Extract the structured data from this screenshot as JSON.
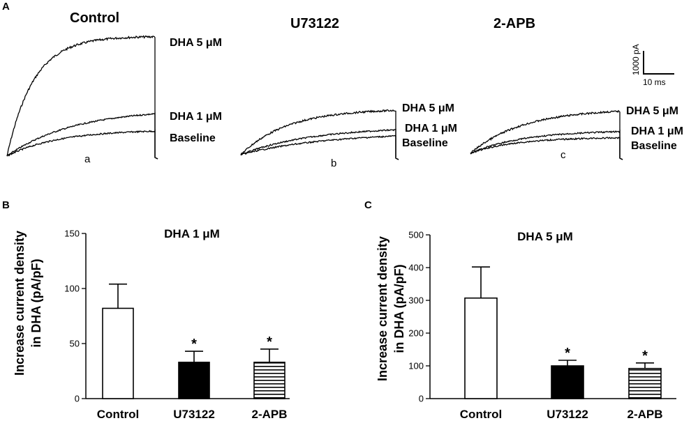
{
  "panel_A": {
    "letter": "A",
    "conditions": [
      {
        "title": "Control",
        "sub": "a",
        "labels": {
          "dha5": "DHA 5 μM",
          "dha1": "DHA 1 μM",
          "baseline": "Baseline"
        }
      },
      {
        "title": "U73122",
        "sub": "b",
        "labels": {
          "dha5": "DHA 5 μM",
          "dha1": "DHA 1 μM",
          "baseline": "Baseline"
        }
      },
      {
        "title": "2-APB",
        "sub": "c",
        "labels": {
          "dha5": "DHA 5 μM",
          "dha1": "DHA 1 μM",
          "baseline": "Baseline"
        }
      }
    ],
    "scale_bar": {
      "current": "1000 pA",
      "time": "10 ms"
    }
  },
  "chart_data": [
    {
      "type": "bar",
      "panel": "B",
      "title": "DHA 1 μM",
      "ylabel": "Increase current density in DHA (pA/pF)",
      "ylabel_lines": [
        "Increase current density",
        "in DHA (pA/pF)"
      ],
      "categories": [
        "Control",
        "U73122",
        "2-APB"
      ],
      "values": [
        82,
        33,
        33
      ],
      "errors": [
        22,
        10,
        12
      ],
      "significance": [
        "",
        "*",
        "*"
      ],
      "fills": [
        "white",
        "black",
        "horizontal-stripes"
      ],
      "ylim": [
        0,
        150
      ],
      "yticks": [
        0,
        50,
        100,
        150
      ]
    },
    {
      "type": "bar",
      "panel": "C",
      "title": "DHA 5 μM",
      "ylabel": "Increase current density in DHA (pA/pF)",
      "ylabel_lines": [
        "Increase current density",
        "in DHA (pA/pF)"
      ],
      "categories": [
        "Control",
        "U73122",
        "2-APB"
      ],
      "values": [
        307,
        100,
        92
      ],
      "errors": [
        95,
        17,
        17
      ],
      "significance": [
        "",
        "*",
        "*"
      ],
      "fills": [
        "white",
        "black",
        "horizontal-stripes"
      ],
      "ylim": [
        0,
        500
      ],
      "yticks": [
        0,
        100,
        200,
        300,
        400,
        500
      ]
    }
  ]
}
